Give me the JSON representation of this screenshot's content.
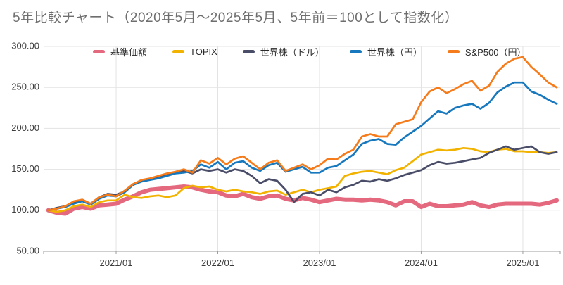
{
  "title": "5年比較チャート（2020年5月〜2025年5月、5年前＝100として指数化）",
  "chart_data": {
    "type": "line",
    "title": "5年比較チャート（2020年5月〜2025年5月、5年前＝100として指数化）",
    "index_note": "5年前＝100として指数化",
    "grid": true,
    "legend_position": "top",
    "ylim": [
      50,
      300
    ],
    "y_ticks": [
      {
        "label": "300.00",
        "value": 300
      },
      {
        "label": "250.00",
        "value": 250
      },
      {
        "label": "200.00",
        "value": 200
      },
      {
        "label": "150.00",
        "value": 150
      },
      {
        "label": "100.00",
        "value": 100
      },
      {
        "label": "50.00",
        "value": 50
      }
    ],
    "x_tick_labels": [
      {
        "label": "2021/01",
        "index": 8
      },
      {
        "label": "2022/01",
        "index": 20
      },
      {
        "label": "2023/01",
        "index": 32
      },
      {
        "label": "2024/01",
        "index": 44
      },
      {
        "label": "2025/01",
        "index": 56
      }
    ],
    "x": [
      "2020/05",
      "2020/06",
      "2020/07",
      "2020/08",
      "2020/09",
      "2020/10",
      "2020/11",
      "2020/12",
      "2021/01",
      "2021/02",
      "2021/03",
      "2021/04",
      "2021/05",
      "2021/06",
      "2021/07",
      "2021/08",
      "2021/09",
      "2021/10",
      "2021/11",
      "2021/12",
      "2022/01",
      "2022/02",
      "2022/03",
      "2022/04",
      "2022/05",
      "2022/06",
      "2022/07",
      "2022/08",
      "2022/09",
      "2022/10",
      "2022/11",
      "2022/12",
      "2023/01",
      "2023/02",
      "2023/03",
      "2023/04",
      "2023/05",
      "2023/06",
      "2023/07",
      "2023/08",
      "2023/09",
      "2023/10",
      "2023/11",
      "2023/12",
      "2024/01",
      "2024/02",
      "2024/03",
      "2024/04",
      "2024/05",
      "2024/06",
      "2024/07",
      "2024/08",
      "2024/09",
      "2024/10",
      "2024/11",
      "2024/12",
      "2025/01",
      "2025/02",
      "2025/03",
      "2025/04",
      "2025/05"
    ],
    "series": [
      {
        "name": "基準価額",
        "color": "#e5697e",
        "stroke_width": 6,
        "values": [
          100,
          97,
          96,
          102,
          104,
          102,
          106,
          107,
          108,
          113,
          117,
          122,
          125,
          126,
          127,
          128,
          129,
          128,
          125,
          123,
          122,
          118,
          117,
          120,
          116,
          114,
          117,
          118,
          114,
          112,
          115,
          113,
          110,
          112,
          114,
          113,
          113,
          112,
          113,
          112,
          110,
          106,
          111,
          111,
          104,
          108,
          105,
          105,
          106,
          107,
          110,
          106,
          104,
          107,
          108,
          108,
          108,
          108,
          107,
          109,
          112
        ]
      },
      {
        "name": "TOPIX",
        "color": "#f2b200",
        "stroke_width": 2.7,
        "values": [
          100,
          98,
          100,
          105,
          107,
          104,
          110,
          112,
          112,
          119,
          116,
          115,
          117,
          118,
          116,
          118,
          127,
          130,
          128,
          129,
          125,
          123,
          125,
          123,
          122,
          120,
          123,
          124,
          119,
          122,
          125,
          122,
          125,
          127,
          129,
          142,
          145,
          147,
          148,
          146,
          144,
          149,
          152,
          160,
          168,
          171,
          174,
          173,
          174,
          176,
          175,
          172,
          171,
          174,
          175,
          172,
          172,
          171,
          171,
          170,
          171
        ]
      },
      {
        "name": "世界株（ドル）",
        "color": "#4a4d68",
        "stroke_width": 2.7,
        "values": [
          100,
          103,
          105,
          110,
          113,
          108,
          116,
          120,
          119,
          123,
          132,
          136,
          138,
          140,
          143,
          146,
          148,
          145,
          150,
          148,
          150,
          146,
          150,
          148,
          142,
          133,
          138,
          136,
          125,
          110,
          120,
          122,
          118,
          125,
          122,
          128,
          131,
          136,
          135,
          138,
          136,
          139,
          143,
          146,
          149,
          155,
          159,
          157,
          158,
          160,
          162,
          164,
          170,
          174,
          178,
          174,
          176,
          178,
          171,
          169,
          171
        ]
      },
      {
        "name": "世界株（円）",
        "color": "#1778be",
        "stroke_width": 2.7,
        "values": [
          100,
          102,
          104,
          108,
          111,
          107,
          114,
          118,
          117,
          122,
          131,
          135,
          137,
          139,
          142,
          145,
          146,
          148,
          156,
          152,
          159,
          150,
          158,
          160,
          152,
          148,
          155,
          158,
          147,
          150,
          153,
          146,
          146,
          152,
          154,
          161,
          168,
          181,
          185,
          187,
          181,
          180,
          189,
          196,
          203,
          212,
          221,
          218,
          225,
          228,
          230,
          224,
          231,
          244,
          251,
          256,
          256,
          245,
          241,
          235,
          230
        ]
      },
      {
        "name": "S&P500（円）",
        "color": "#f67c1b",
        "stroke_width": 2.7,
        "values": [
          100,
          102,
          105,
          111,
          113,
          108,
          116,
          119,
          117,
          124,
          132,
          137,
          139,
          142,
          145,
          147,
          150,
          146,
          161,
          157,
          164,
          156,
          163,
          166,
          158,
          150,
          158,
          161,
          148,
          152,
          156,
          150,
          155,
          163,
          162,
          169,
          174,
          190,
          193,
          190,
          190,
          205,
          208,
          211,
          232,
          245,
          250,
          243,
          248,
          254,
          258,
          246,
          252,
          269,
          279,
          285,
          287,
          275,
          266,
          256,
          250
        ]
      }
    ],
    "colors": {
      "grid": "#e3e3e3",
      "axis": "#9e9e9e",
      "tick_text": "#3c3c3c",
      "title_text": "#6e6e6e"
    }
  }
}
